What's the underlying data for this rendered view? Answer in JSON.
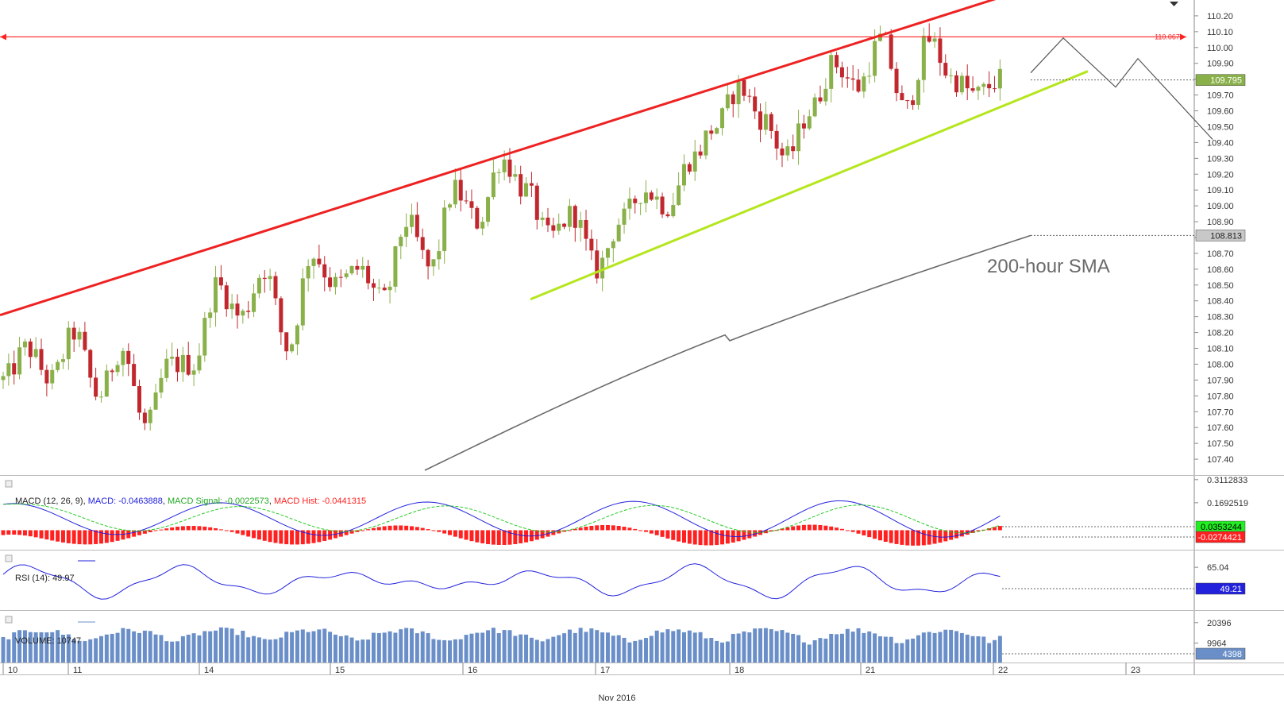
{
  "chart_data": {
    "type": "candlestick",
    "instrument_annotation": "200-hour SMA",
    "x_axis": {
      "month_label": "Nov 2016",
      "day_labels": [
        "10",
        "11",
        "14",
        "15",
        "16",
        "17",
        "18",
        "21",
        "22",
        "23"
      ]
    },
    "price_panel": {
      "ylim": [
        107.3,
        110.3
      ],
      "y_ticks": [
        "110.20",
        "110.10",
        "110.00",
        "109.90",
        "109.80",
        "109.70",
        "109.60",
        "109.50",
        "109.40",
        "109.30",
        "109.20",
        "109.10",
        "109.00",
        "108.90",
        "108.80",
        "108.70",
        "108.60",
        "108.50",
        "108.40",
        "108.30",
        "108.20",
        "108.10",
        "108.00",
        "107.90",
        "107.80",
        "107.70",
        "107.60",
        "107.50",
        "107.40"
      ],
      "resistance_level": {
        "label": "110.067",
        "value": 110.067,
        "color": "#ff2020"
      },
      "last_price": {
        "label": "109.795",
        "value": 109.795,
        "color": "#8ab04a"
      },
      "sma_last": {
        "label": "108.813",
        "value": 108.813,
        "color": "#666666"
      },
      "bull_color": "#8ab04a",
      "bear_color": "#c0282e",
      "channel_upper_color": "#ee2222",
      "channel_lower_color": "#b5e61d",
      "sma_color": "#6b6b6b",
      "anchors": [
        107.9,
        108.1,
        107.9,
        108.2,
        107.8,
        108.1,
        107.6,
        108.0,
        108.0,
        108.5,
        108.3,
        108.6,
        108.1,
        108.7,
        108.5,
        108.6,
        108.4,
        108.9,
        108.6,
        109.1,
        108.9,
        109.3,
        109.1,
        108.8,
        108.95,
        108.6,
        108.9,
        109.1,
        109.0,
        109.3,
        109.5,
        109.75,
        109.55,
        109.3,
        109.6,
        109.9,
        109.75,
        110.05,
        109.6,
        110.05,
        109.8,
        109.7,
        109.8
      ]
    },
    "macd_panel": {
      "label": "MACD (12, 26, 9)",
      "macd_label": "MACD: -0.0463888",
      "signal_label": "MACD Signal: -0.0022573",
      "hist_label": "MACD Hist: -0.0441315",
      "macd_color": "#2222dd",
      "signal_color": "#22cc22",
      "hist_color": "#ff2020",
      "y_ticks": [
        "0.3112833",
        "0.1692519"
      ],
      "markers": [
        {
          "label": "0.0353244",
          "color": "#22ee22"
        },
        {
          "label": "-0.0274421",
          "color": "#ff2020"
        }
      ],
      "ylim": [
        -0.12,
        0.33
      ]
    },
    "rsi_panel": {
      "label": "RSI (14): 49.97",
      "color": "#2222dd",
      "y_ticks": [
        "65.04"
      ],
      "marker": {
        "label": "49.21",
        "color": "#2222dd"
      },
      "ylim": [
        25,
        80
      ]
    },
    "volume_panel": {
      "label": "VOLUME: 10747",
      "color": "#6a8fc8",
      "y_ticks": [
        "20396",
        "9964"
      ],
      "marker": {
        "label": "4398",
        "color": "#6a8fc8"
      },
      "ylim": [
        0,
        26000
      ]
    }
  }
}
